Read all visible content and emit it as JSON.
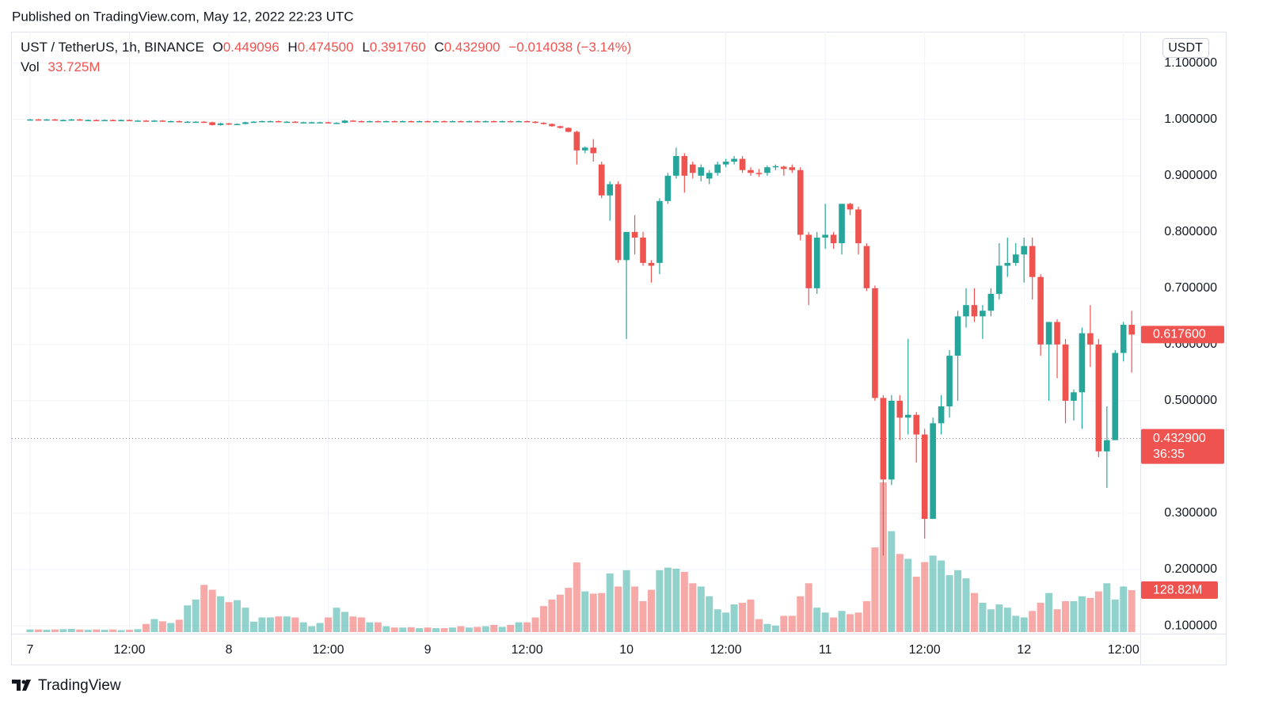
{
  "header": {
    "published": "Published on TradingView.com, May 12, 2022 22:23 UTC",
    "brand": "TradingView"
  },
  "chart_data": {
    "type": "candlestick",
    "symbol": "UST / TetherUS, 1h, BINANCE",
    "legend": {
      "o_key": "O",
      "o": "0.449096",
      "h_key": "H",
      "h": "0.474500",
      "l_key": "L",
      "l": "0.391760",
      "c_key": "C",
      "c": "0.432900",
      "change": "−0.014038 (−3.14%)",
      "vol_key": "Vol",
      "vol": "33.725M"
    },
    "currency": "USDT",
    "ylim": [
      0.086,
      1.156
    ],
    "yticks": [
      {
        "value": 0.1,
        "label": "0.100000"
      },
      {
        "value": 0.2,
        "label": "0.200000"
      },
      {
        "value": 0.3,
        "label": "0.300000"
      },
      {
        "value": 0.5,
        "label": "0.500000"
      },
      {
        "value": 0.6,
        "label": "0.600000"
      },
      {
        "value": 0.7,
        "label": "0.700000"
      },
      {
        "value": 0.8,
        "label": "0.800000"
      },
      {
        "value": 0.9,
        "label": "0.900000"
      },
      {
        "value": 1.0,
        "label": "1.000000"
      },
      {
        "value": 1.1,
        "label": "1.100000"
      }
    ],
    "volume_ylim": [
      0,
      1000
    ],
    "grid": true,
    "up_color": "#26a69a",
    "down_color": "#ef5350",
    "last_price": {
      "value": 0.6176,
      "label": "0.617600"
    },
    "close_line": {
      "value": 0.4329,
      "label": "0.432900",
      "countdown": "36:35"
    },
    "volume_label": {
      "value": 128.82,
      "label": "128.82M"
    },
    "categories": [
      "7",
      null,
      null,
      null,
      null,
      null,
      null,
      null,
      null,
      null,
      null,
      null,
      "12:00",
      null,
      null,
      null,
      null,
      null,
      null,
      null,
      null,
      null,
      null,
      null,
      "8",
      null,
      null,
      null,
      null,
      null,
      null,
      null,
      null,
      null,
      null,
      null,
      "12:00",
      null,
      null,
      null,
      null,
      null,
      null,
      null,
      null,
      null,
      null,
      null,
      "9",
      null,
      null,
      null,
      null,
      null,
      null,
      null,
      null,
      null,
      null,
      null,
      "12:00",
      null,
      null,
      null,
      null,
      null,
      null,
      null,
      null,
      null,
      null,
      null,
      "10",
      null,
      null,
      null,
      null,
      null,
      null,
      null,
      null,
      null,
      null,
      null,
      "12:00",
      null,
      null,
      null,
      null,
      null,
      null,
      null,
      null,
      null,
      null,
      null,
      "11",
      null,
      null,
      null,
      null,
      null,
      null,
      null,
      null,
      null,
      null,
      null,
      "12:00",
      null,
      null,
      null,
      null,
      null,
      null,
      null,
      null,
      null,
      null,
      null,
      "12",
      null,
      null,
      null,
      null,
      null,
      null,
      null,
      null,
      null,
      null,
      null,
      "12:00",
      null
    ],
    "open": [
      1.0,
      1.0,
      0.999,
      1.0,
      0.999,
      0.999,
      1.0,
      0.999,
      0.999,
      0.998,
      0.999,
      0.998,
      0.999,
      0.998,
      0.998,
      0.997,
      0.998,
      0.997,
      0.997,
      0.996,
      0.996,
      0.996,
      0.995,
      0.99,
      0.993,
      0.991,
      0.992,
      0.995,
      0.996,
      0.997,
      0.997,
      0.996,
      0.996,
      0.995,
      0.995,
      0.995,
      0.995,
      0.994,
      0.994,
      0.998,
      0.997,
      0.996,
      0.997,
      0.996,
      0.997,
      0.996,
      0.997,
      0.996,
      0.997,
      0.996,
      0.997,
      0.996,
      0.997,
      0.996,
      0.997,
      0.996,
      0.997,
      0.996,
      0.997,
      0.996,
      0.997,
      0.996,
      0.994,
      0.992,
      0.988,
      0.985,
      0.978,
      0.945,
      0.95,
      0.92,
      0.865,
      0.885,
      0.75,
      0.8,
      0.79,
      0.745,
      0.745,
      0.855,
      0.9,
      0.935,
      0.92,
      0.9,
      0.895,
      0.905,
      0.92,
      0.925,
      0.93,
      0.91,
      0.905,
      0.905,
      0.915,
      0.916,
      0.915,
      0.91,
      0.795,
      0.7,
      0.79,
      0.795,
      0.78,
      0.85,
      0.84,
      0.775,
      0.7,
      0.505,
      0.36,
      0.5,
      0.47,
      0.475,
      0.44,
      0.29,
      0.46,
      0.49,
      0.58,
      0.65,
      0.67,
      0.65,
      0.66,
      0.69,
      0.74,
      0.745,
      0.76,
      0.775,
      0.72,
      0.6,
      0.64,
      0.6,
      0.5,
      0.515,
      0.62,
      0.6,
      0.41,
      0.43,
      0.585,
      0.635
    ],
    "high": [
      1.001,
      1.001,
      1.001,
      1.001,
      1.0,
      1.001,
      1.001,
      1.0,
      1.0,
      1.0,
      1.0,
      1.0,
      1.0,
      0.999,
      0.999,
      0.999,
      0.999,
      0.998,
      0.998,
      0.997,
      0.997,
      0.997,
      0.996,
      0.994,
      0.994,
      0.993,
      0.996,
      0.997,
      0.998,
      0.998,
      0.998,
      0.997,
      0.997,
      0.996,
      0.996,
      0.996,
      0.996,
      0.995,
      0.999,
      0.999,
      0.998,
      0.998,
      0.998,
      0.998,
      0.998,
      0.998,
      0.998,
      0.998,
      0.998,
      0.998,
      0.998,
      0.998,
      0.998,
      0.998,
      0.998,
      0.998,
      0.998,
      0.998,
      0.998,
      0.998,
      0.998,
      0.997,
      0.995,
      0.993,
      0.989,
      0.986,
      0.98,
      0.952,
      0.965,
      0.925,
      0.89,
      0.89,
      0.8,
      0.83,
      0.8,
      0.75,
      0.86,
      0.905,
      0.95,
      0.94,
      0.925,
      0.92,
      0.91,
      0.925,
      0.93,
      0.935,
      0.935,
      0.915,
      0.912,
      0.918,
      0.92,
      0.918,
      0.92,
      0.915,
      0.8,
      0.8,
      0.85,
      0.8,
      0.85,
      0.852,
      0.845,
      0.78,
      0.705,
      0.51,
      0.51,
      0.51,
      0.61,
      0.48,
      0.45,
      0.47,
      0.51,
      0.59,
      0.66,
      0.7,
      0.7,
      0.67,
      0.7,
      0.78,
      0.79,
      0.78,
      0.79,
      0.79,
      0.725,
      0.64,
      0.645,
      0.61,
      0.52,
      0.63,
      0.67,
      0.61,
      0.49,
      0.59,
      0.64,
      0.66
    ],
    "low": [
      0.999,
      0.998,
      0.998,
      0.998,
      0.998,
      0.998,
      0.998,
      0.998,
      0.997,
      0.997,
      0.997,
      0.997,
      0.997,
      0.997,
      0.996,
      0.996,
      0.996,
      0.996,
      0.995,
      0.995,
      0.995,
      0.994,
      0.989,
      0.989,
      0.99,
      0.99,
      0.991,
      0.994,
      0.995,
      0.996,
      0.995,
      0.995,
      0.994,
      0.994,
      0.994,
      0.994,
      0.993,
      0.993,
      0.993,
      0.996,
      0.995,
      0.995,
      0.995,
      0.995,
      0.995,
      0.995,
      0.995,
      0.995,
      0.995,
      0.995,
      0.995,
      0.995,
      0.995,
      0.995,
      0.995,
      0.995,
      0.995,
      0.995,
      0.995,
      0.995,
      0.995,
      0.993,
      0.991,
      0.987,
      0.984,
      0.977,
      0.92,
      0.94,
      0.925,
      0.86,
      0.82,
      0.745,
      0.61,
      0.76,
      0.74,
      0.71,
      0.725,
      0.85,
      0.895,
      0.87,
      0.895,
      0.89,
      0.885,
      0.9,
      0.915,
      0.92,
      0.905,
      0.9,
      0.898,
      0.9,
      0.91,
      0.9,
      0.905,
      0.785,
      0.67,
      0.69,
      0.77,
      0.77,
      0.76,
      0.83,
      0.76,
      0.695,
      0.5,
      0.225,
      0.35,
      0.43,
      0.44,
      0.39,
      0.255,
      0.29,
      0.44,
      0.47,
      0.5,
      0.63,
      0.64,
      0.61,
      0.65,
      0.68,
      0.72,
      0.74,
      0.71,
      0.68,
      0.58,
      0.5,
      0.54,
      0.46,
      0.465,
      0.45,
      0.56,
      0.4,
      0.345,
      0.43,
      0.57,
      0.55
    ],
    "close": [
      1.0,
      0.999,
      1.0,
      0.999,
      0.999,
      1.0,
      0.999,
      0.999,
      0.998,
      0.999,
      0.998,
      0.999,
      0.998,
      0.998,
      0.997,
      0.998,
      0.997,
      0.997,
      0.996,
      0.996,
      0.996,
      0.995,
      0.99,
      0.993,
      0.991,
      0.992,
      0.995,
      0.996,
      0.997,
      0.997,
      0.996,
      0.996,
      0.995,
      0.995,
      0.995,
      0.995,
      0.994,
      0.994,
      0.998,
      0.997,
      0.996,
      0.997,
      0.996,
      0.997,
      0.996,
      0.997,
      0.996,
      0.997,
      0.996,
      0.997,
      0.996,
      0.997,
      0.996,
      0.997,
      0.996,
      0.997,
      0.996,
      0.997,
      0.996,
      0.997,
      0.996,
      0.994,
      0.992,
      0.988,
      0.985,
      0.978,
      0.945,
      0.95,
      0.94,
      0.865,
      0.885,
      0.75,
      0.8,
      0.79,
      0.745,
      0.74,
      0.855,
      0.9,
      0.935,
      0.9,
      0.905,
      0.915,
      0.905,
      0.92,
      0.925,
      0.93,
      0.91,
      0.905,
      0.903,
      0.915,
      0.917,
      0.912,
      0.91,
      0.795,
      0.7,
      0.79,
      0.795,
      0.78,
      0.85,
      0.84,
      0.78,
      0.7,
      0.505,
      0.36,
      0.5,
      0.47,
      0.475,
      0.44,
      0.29,
      0.46,
      0.49,
      0.58,
      0.65,
      0.67,
      0.65,
      0.66,
      0.69,
      0.74,
      0.745,
      0.76,
      0.775,
      0.72,
      0.6,
      0.64,
      0.6,
      0.5,
      0.515,
      0.62,
      0.6,
      0.41,
      0.43,
      0.585,
      0.635,
      0.6176
    ],
    "volume": [
      8,
      8,
      7,
      8,
      9,
      10,
      8,
      7,
      8,
      7,
      8,
      6,
      7,
      9,
      25,
      40,
      33,
      28,
      38,
      82,
      100,
      145,
      130,
      110,
      92,
      98,
      75,
      32,
      45,
      45,
      48,
      48,
      45,
      30,
      18,
      28,
      45,
      75,
      62,
      48,
      45,
      30,
      30,
      18,
      14,
      14,
      15,
      12,
      14,
      12,
      12,
      14,
      18,
      14,
      16,
      18,
      22,
      16,
      22,
      30,
      30,
      45,
      80,
      100,
      115,
      136,
      214,
      125,
      118,
      120,
      180,
      140,
      190,
      140,
      95,
      130,
      190,
      198,
      195,
      185,
      150,
      140,
      110,
      70,
      60,
      85,
      90,
      100,
      40,
      25,
      20,
      50,
      50,
      110,
      150,
      75,
      60,
      45,
      65,
      55,
      60,
      95,
      260,
      460,
      310,
      240,
      225,
      170,
      215,
      235,
      220,
      175,
      190,
      165,
      120,
      90,
      70,
      85,
      75,
      50,
      45,
      65,
      90,
      120,
      70,
      95,
      95,
      110,
      105,
      125,
      150,
      100,
      140,
      128.82
    ]
  }
}
